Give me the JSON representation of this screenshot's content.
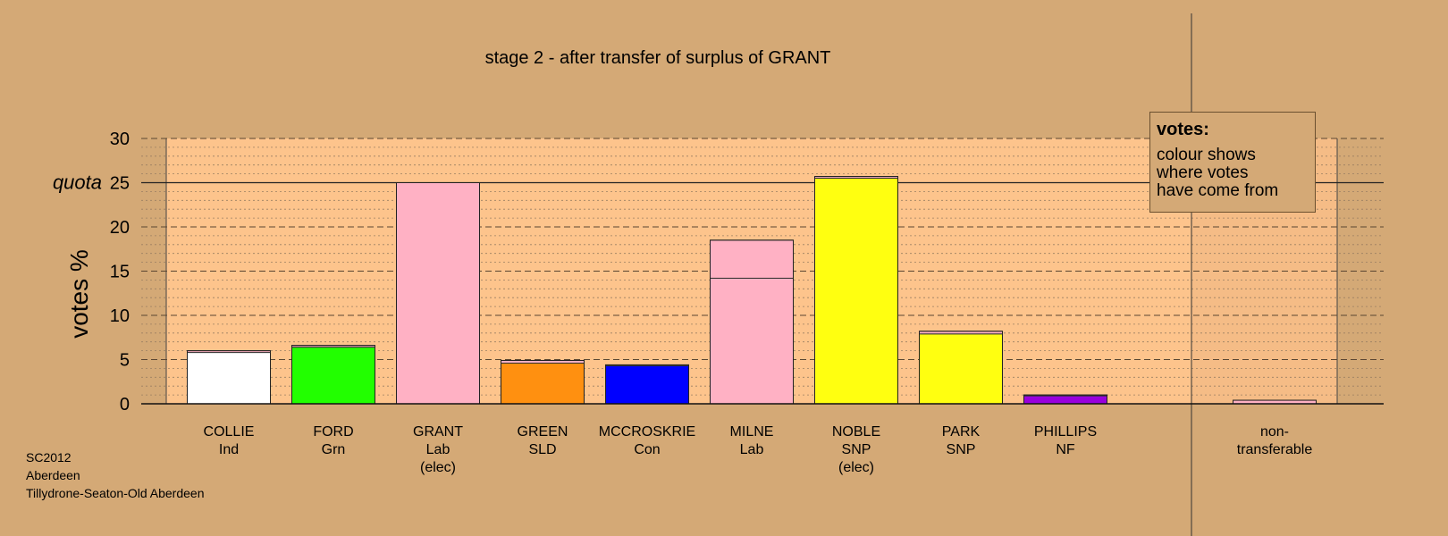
{
  "chart_data": {
    "type": "bar",
    "title": "stage 2 - after transfer of surplus of GRANT",
    "ylabel": "votes %",
    "ylim": [
      0,
      30
    ],
    "yticks": [
      0,
      5,
      10,
      15,
      20,
      25,
      30
    ],
    "quota": {
      "label": "quota",
      "value": 25
    },
    "grid": true,
    "categories": [
      [
        "COLLIE",
        "Ind"
      ],
      [
        "FORD",
        "Grn"
      ],
      [
        "GRANT",
        "Lab",
        "(elec)"
      ],
      [
        "GREEN",
        "SLD"
      ],
      [
        "MCCROSKRIE",
        "Con"
      ],
      [
        "MILNE",
        "Lab"
      ],
      [
        "NOBLE",
        "SNP",
        "(elec)"
      ],
      [
        "PARK",
        "SNP"
      ],
      [
        "PHILLIPS",
        "NF"
      ],
      [
        "non-",
        "transferable"
      ]
    ],
    "bars": [
      {
        "total": 6.0,
        "segments": [
          {
            "value": 5.8,
            "color": "#ffffff"
          },
          {
            "value": 0.2,
            "color": "#ffb1c4"
          }
        ]
      },
      {
        "total": 6.6,
        "segments": [
          {
            "value": 6.4,
            "color": "#22ff00"
          },
          {
            "value": 0.2,
            "color": "#ffb1c4"
          }
        ]
      },
      {
        "total": 25.0,
        "segments": [
          {
            "value": 25.0,
            "color": "#ffb1c4"
          }
        ]
      },
      {
        "total": 4.9,
        "segments": [
          {
            "value": 4.6,
            "color": "#ff9010"
          },
          {
            "value": 0.3,
            "color": "#ffb1c4"
          }
        ]
      },
      {
        "total": 4.4,
        "segments": [
          {
            "value": 4.3,
            "color": "#0000ff"
          },
          {
            "value": 0.1,
            "color": "#ffb1c4"
          }
        ]
      },
      {
        "total": 18.5,
        "segments": [
          {
            "value": 14.2,
            "color": "#ffb1c4"
          },
          {
            "value": 4.3,
            "color": "#ffb1c4"
          }
        ]
      },
      {
        "total": 25.7,
        "segments": [
          {
            "value": 25.5,
            "color": "#ffff10"
          },
          {
            "value": 0.2,
            "color": "#ffb1c4"
          }
        ]
      },
      {
        "total": 8.2,
        "segments": [
          {
            "value": 7.9,
            "color": "#ffff10"
          },
          {
            "value": 0.3,
            "color": "#ffb1c4"
          }
        ]
      },
      {
        "total": 1.0,
        "segments": [
          {
            "value": 0.9,
            "color": "#9900dd"
          },
          {
            "value": 0.1,
            "color": "#ffb1c4"
          }
        ]
      },
      {
        "total": 0.4,
        "segments": [
          {
            "value": 0.4,
            "color": "#ffb1c4"
          }
        ]
      }
    ]
  },
  "legend": {
    "title": "votes:",
    "lines": [
      "colour shows",
      "where votes",
      "have come from"
    ]
  },
  "footer": {
    "lines": [
      "SC2012",
      "Aberdeen",
      "Tillydrone-Seaton-Old Aberdeen"
    ]
  }
}
